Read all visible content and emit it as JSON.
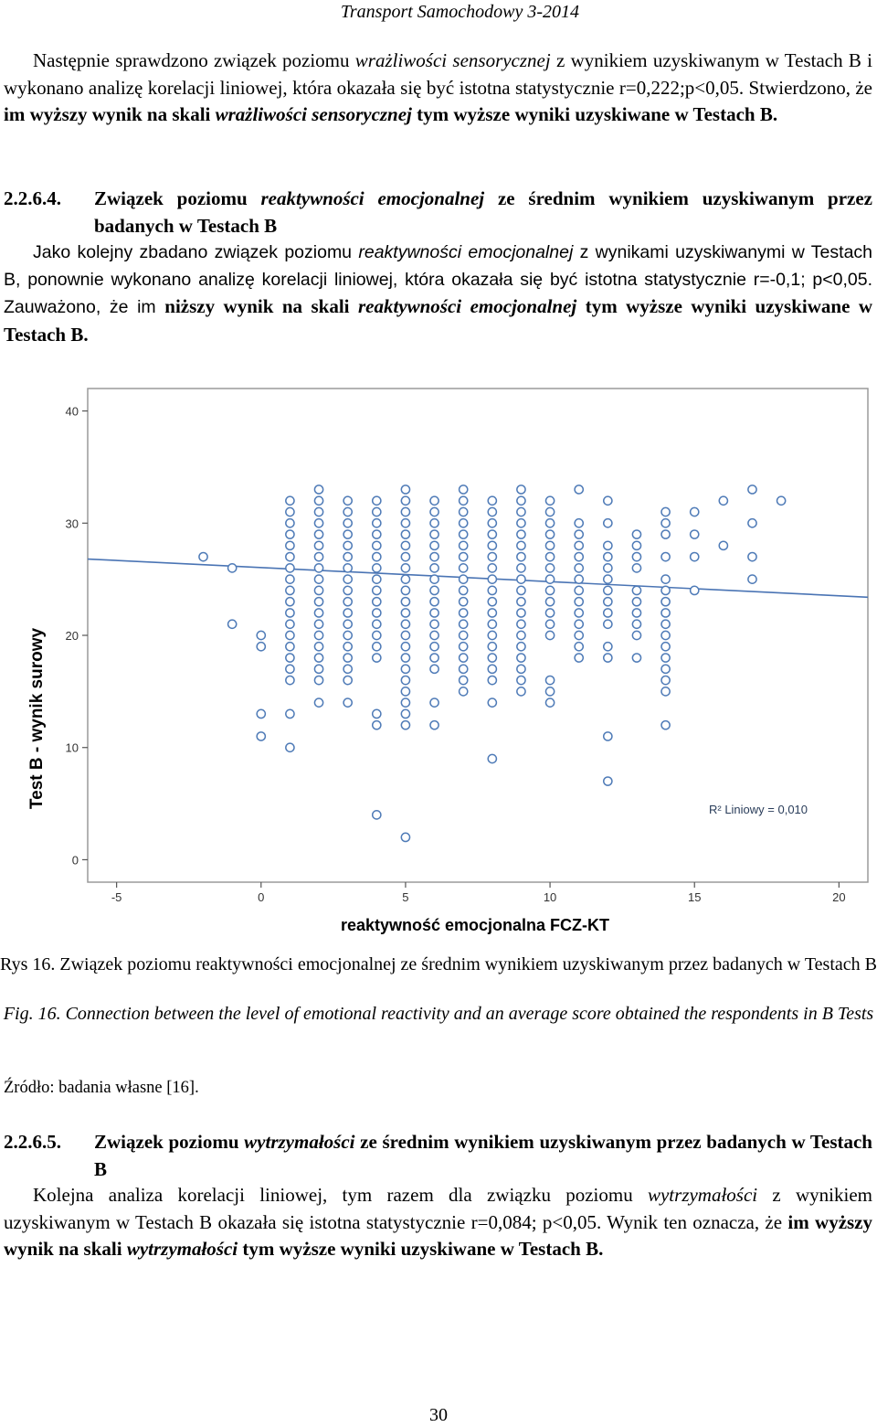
{
  "header": {
    "running_head": "Transport Samochodowy 3-2014"
  },
  "intro_paragraph": {
    "s1": "Następnie sprawdzono związek poziomu ",
    "s2": "wrażliwości sensorycznej",
    "s3": " z wynikiem uzyskiwanym w Testach B i wykonano analizę korelacji liniowej, która okazała się być istotna statystycznie r=0,222;p<0,05. Stwierdzono, że ",
    "s4": "im wyższy wynik na skali ",
    "s5": "wrażliwości sensorycznej",
    "s6": " tym wyższe wyniki uzyskiwane w Testach B."
  },
  "section_4": {
    "number": "2.2.6.4.",
    "t1": "Związek poziomu ",
    "t2": "reaktywności emocjonalnej",
    "t3": " ze średnim wynikiem uzyskiwanym przez badanych w Testach B"
  },
  "section_4_paragraph": {
    "s1": "Jako kolejny zbadano związek poziomu ",
    "s2": "reaktywności emocjonalnej",
    "s3": " z wynikami uzyskiwanymi w Testach B, ponownie wykonano analizę korelacji liniowej, która okazała się być istotna statystycznie r=-0,1; p<0,05. Zauważono, że im ",
    "s4": "niższy wynik na skali ",
    "s5": "reaktywności emocjonalnej",
    "s6": " tym wyższe wyniki uzyskiwane w Testach B."
  },
  "chart_data": {
    "type": "scatter",
    "xlabel": "reaktywność emocjonalna FCZ-KT",
    "ylabel": "Test B - wynik surowy",
    "xlim": [
      -6,
      21
    ],
    "ylim": [
      -2,
      42
    ],
    "x_ticks": [
      "-5",
      "0",
      "5",
      "10",
      "15",
      "20"
    ],
    "y_ticks": [
      "0",
      "10",
      "20",
      "30",
      "40"
    ],
    "annotation": "R² Liniowy = 0,010",
    "fit_line": {
      "x": [
        -6,
        21
      ],
      "y": [
        26.8,
        23.4
      ]
    },
    "points_by_x": [
      {
        "x": -2,
        "y": [
          27
        ]
      },
      {
        "x": -1,
        "y": [
          26,
          21
        ]
      },
      {
        "x": 0,
        "y": [
          20,
          19,
          13,
          11
        ]
      },
      {
        "x": 1,
        "y": [
          32,
          31,
          30,
          29,
          28,
          27,
          26,
          25,
          24,
          23,
          22,
          21,
          20,
          19,
          18,
          17,
          16,
          13,
          10
        ]
      },
      {
        "x": 2,
        "y": [
          33,
          32,
          31,
          30,
          29,
          28,
          27,
          26,
          25,
          24,
          23,
          22,
          21,
          20,
          19,
          18,
          17,
          16,
          14
        ]
      },
      {
        "x": 3,
        "y": [
          32,
          31,
          30,
          29,
          28,
          27,
          26,
          25,
          24,
          23,
          22,
          21,
          20,
          19,
          18,
          17,
          16,
          14
        ]
      },
      {
        "x": 4,
        "y": [
          32,
          31,
          30,
          29,
          28,
          27,
          26,
          25,
          24,
          23,
          22,
          21,
          20,
          19,
          18,
          13,
          12,
          4
        ]
      },
      {
        "x": 5,
        "y": [
          33,
          32,
          31,
          30,
          29,
          28,
          27,
          26,
          25,
          24,
          23,
          22,
          21,
          20,
          19,
          18,
          17,
          16,
          15,
          14,
          13,
          12,
          2
        ]
      },
      {
        "x": 6,
        "y": [
          32,
          31,
          30,
          29,
          28,
          27,
          26,
          25,
          24,
          23,
          22,
          21,
          20,
          19,
          18,
          17,
          14,
          12
        ]
      },
      {
        "x": 7,
        "y": [
          33,
          32,
          31,
          30,
          29,
          28,
          27,
          26,
          25,
          24,
          23,
          22,
          21,
          20,
          19,
          18,
          17,
          16,
          15
        ]
      },
      {
        "x": 8,
        "y": [
          32,
          31,
          30,
          29,
          28,
          27,
          26,
          25,
          24,
          23,
          22,
          21,
          20,
          19,
          18,
          17,
          16,
          14,
          9
        ]
      },
      {
        "x": 9,
        "y": [
          33,
          32,
          31,
          30,
          29,
          28,
          27,
          26,
          25,
          24,
          23,
          22,
          21,
          20,
          19,
          18,
          17,
          16,
          15
        ]
      },
      {
        "x": 10,
        "y": [
          32,
          31,
          30,
          29,
          28,
          27,
          26,
          25,
          24,
          23,
          22,
          21,
          20,
          16,
          15,
          14
        ]
      },
      {
        "x": 11,
        "y": [
          33,
          30,
          29,
          28,
          27,
          26,
          25,
          24,
          23,
          22,
          21,
          20,
          19,
          18
        ]
      },
      {
        "x": 12,
        "y": [
          32,
          30,
          28,
          27,
          26,
          25,
          24,
          23,
          22,
          21,
          19,
          18,
          11,
          7
        ]
      },
      {
        "x": 13,
        "y": [
          29,
          28,
          27,
          26,
          24,
          23,
          22,
          21,
          20,
          18
        ]
      },
      {
        "x": 14,
        "y": [
          31,
          30,
          29,
          27,
          25,
          24,
          23,
          22,
          21,
          20,
          19,
          18,
          17,
          16,
          15,
          12
        ]
      },
      {
        "x": 15,
        "y": [
          31,
          29,
          27,
          24
        ]
      },
      {
        "x": 16,
        "y": [
          32,
          28
        ]
      },
      {
        "x": 17,
        "y": [
          33,
          30,
          27,
          25
        ]
      },
      {
        "x": 18,
        "y": [
          32
        ]
      }
    ]
  },
  "figure_caption": {
    "pl": "Rys 16. Związek poziomu reaktywności emocjonalnej ze średnim wynikiem uzyskiwanym przez badanych w Testach B",
    "en": "Fig. 16. Connection between the level of emotional reactivity and an average score obtained the respondents in B Tests"
  },
  "source": "Źródło: badania własne [16].",
  "section_5": {
    "number": "2.2.6.5.",
    "t1": "Związek poziomu ",
    "t2": "wytrzymałości",
    "t3": " ze średnim wynikiem uzyskiwanym przez badanych w Testach B"
  },
  "section_5_paragraph": {
    "s1": "Kolejna analiza korelacji liniowej, tym razem dla związku poziomu ",
    "s2": "wytrzymałości",
    "s3": " z wynikiem uzyskiwanym w Testach B okazała się istotna statystycznie r=0,084; p<0,05. Wynik ten oznacza, że ",
    "s4": "im wyższy wynik na skali ",
    "s5": "wytrzymałości",
    "s6": " tym wyższe wyniki uzyskiwane w Testach B."
  },
  "footer": {
    "page_number": "30"
  }
}
